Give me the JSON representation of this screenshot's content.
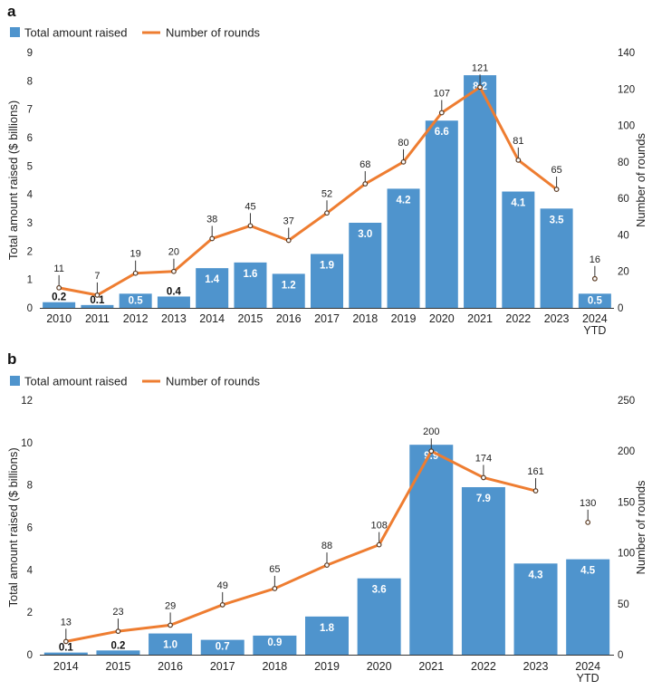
{
  "chart_data": [
    {
      "panel": "a",
      "type": "bar",
      "legend": {
        "bar": "Total amount raised",
        "line": "Number of rounds"
      },
      "ylabel": "Total amount raised ($ billions)",
      "y2label": "Number of rounds",
      "ylim": [
        0,
        9
      ],
      "y2lim": [
        0,
        140
      ],
      "yticks": [
        0,
        1,
        2,
        3,
        4,
        5,
        6,
        7,
        8,
        9
      ],
      "y2ticks": [
        0,
        20,
        40,
        60,
        80,
        100,
        120,
        140
      ],
      "categories": [
        "2010",
        "2011",
        "2012",
        "2013",
        "2014",
        "2015",
        "2016",
        "2017",
        "2018",
        "2019",
        "2020",
        "2021",
        "2022",
        "2023",
        "2024\nYTD"
      ],
      "values": [
        0.2,
        0.1,
        0.5,
        0.4,
        1.4,
        1.6,
        1.2,
        1.9,
        3.0,
        4.2,
        6.6,
        8.2,
        4.1,
        3.5,
        0.5
      ],
      "value_labels": [
        "0.2",
        "0.1",
        "0.5",
        "0.4",
        "1.4",
        "1.6",
        "1.2",
        "1.9",
        "3.0",
        "4.2",
        "6.6",
        "8.2",
        "4.1",
        "3.5",
        "0.5"
      ],
      "rounds": [
        11,
        7,
        19,
        20,
        38,
        45,
        37,
        52,
        68,
        80,
        107,
        121,
        81,
        65,
        16
      ],
      "line_points": 14,
      "colors": {
        "bar": "#4f94cd",
        "line": "#ee7d31",
        "marker": "#5a3a22"
      }
    },
    {
      "panel": "b",
      "type": "bar",
      "legend": {
        "bar": "Total amount raised",
        "line": "Number of rounds"
      },
      "ylabel": "Total amount raised ($ billions)",
      "y2label": "Number of rounds",
      "ylim": [
        0,
        12
      ],
      "y2lim": [
        0,
        250
      ],
      "yticks": [
        0,
        2,
        4,
        6,
        8,
        10,
        12
      ],
      "y2ticks": [
        0,
        50,
        100,
        150,
        200,
        250
      ],
      "categories": [
        "2014",
        "2015",
        "2016",
        "2017",
        "2018",
        "2019",
        "2020",
        "2021",
        "2022",
        "2023",
        "2024\nYTD"
      ],
      "values": [
        0.1,
        0.2,
        1.0,
        0.7,
        0.9,
        1.8,
        3.6,
        9.9,
        7.9,
        4.3,
        4.5
      ],
      "value_labels": [
        "0.1",
        "0.2",
        "1.0",
        "0.7",
        "0.9",
        "1.8",
        "3.6",
        "9.9",
        "7.9",
        "4.3",
        "4.5"
      ],
      "rounds": [
        13,
        23,
        29,
        49,
        65,
        88,
        108,
        200,
        174,
        161,
        130
      ],
      "line_points": 10,
      "colors": {
        "bar": "#4f94cd",
        "line": "#ee7d31",
        "marker": "#5a3a22"
      }
    }
  ]
}
